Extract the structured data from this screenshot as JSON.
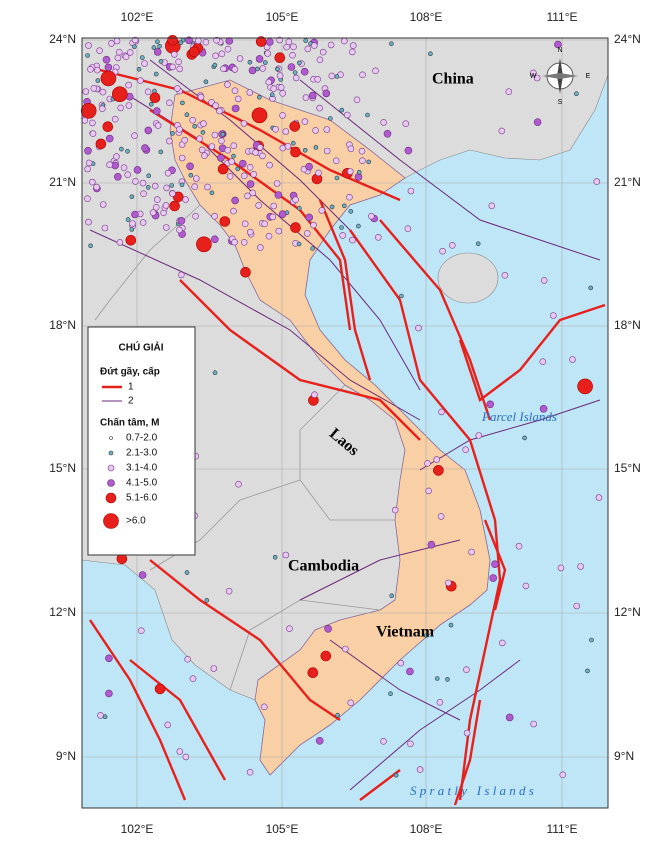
{
  "axes": {
    "top": [
      "102°E",
      "105°E",
      "108°E",
      "111°E"
    ],
    "bottom": [
      "102°E",
      "105°E",
      "108°E",
      "111°E"
    ],
    "left": [
      "24°N",
      "21°N",
      "18°N",
      "15°N",
      "12°N",
      "9°N"
    ],
    "right": [
      "24°N",
      "21°N",
      "18°N",
      "15°N",
      "12°N",
      "9°N"
    ]
  },
  "places": {
    "china": "China",
    "laos": "Laos",
    "cambodia": "Cambodia",
    "vietnam": "Vietnam",
    "parcel": "Parcel Islands",
    "spratly": "S p r a t l y   I s l a n d s"
  },
  "compass": {
    "n": "N",
    "e": "E",
    "s": "S",
    "w": "W"
  },
  "legend": {
    "title": "CHÚ GIẢI",
    "fault_title": "Đứt gãy, cấp",
    "faults": [
      "1",
      "2"
    ],
    "epicenter_title": "Chấn tâm, M",
    "magnitudes": [
      "0.7-2.0",
      "2.1-3.0",
      "3.1-4.0",
      "4.1-5.0",
      "5.1-6.0",
      ">6.0"
    ]
  }
}
